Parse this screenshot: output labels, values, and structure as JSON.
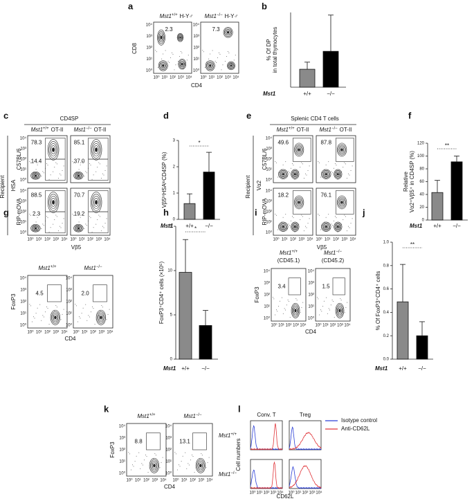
{
  "panel_letters": [
    "a",
    "b",
    "c",
    "d",
    "e",
    "f",
    "g",
    "h",
    "i",
    "j",
    "k",
    "l"
  ],
  "flow_ticks": [
    "10⁰",
    "10¹",
    "10²",
    "10³",
    "10⁴"
  ],
  "a": {
    "plots": [
      {
        "genotype": "Mst1",
        "superscript": "+/+",
        "suffix": "H-Y♂",
        "value": "2.3"
      },
      {
        "genotype": "Mst1",
        "superscript": "−/−",
        "suffix": "H-Y♂",
        "value": "7.3"
      }
    ],
    "y_label": "CD8",
    "x_label": "CD4"
  },
  "c": {
    "header": "CD4SP",
    "row_group": "Recipient",
    "rows": [
      "C57BL/6",
      "RIP-mOVA"
    ],
    "columns": [
      {
        "genotype": "Mst1",
        "superscript": "+/+",
        "suffix": "OT-II"
      },
      {
        "genotype": "Mst1",
        "superscript": "−/−",
        "suffix": "OT-II"
      }
    ],
    "values": [
      [
        [
          "78.3",
          "14.4"
        ],
        [
          "85.1",
          "37.0"
        ]
      ],
      [
        [
          "88.5",
          "2.3"
        ],
        [
          "70.7",
          "19.2"
        ]
      ]
    ],
    "y_label": "HSA",
    "x_label": "Vβ5"
  },
  "e": {
    "header": "Splenic CD4 T cells",
    "row_group": "Recipient",
    "rows": [
      "C57BL/6",
      "RIP-mOVA"
    ],
    "columns": [
      {
        "genotype": "Mst1",
        "superscript": "+/+",
        "suffix": "OT-II"
      },
      {
        "genotype": "Mst1",
        "superscript": "−/−",
        "suffix": "OT-II"
      }
    ],
    "values": [
      [
        "49.6",
        "87.8"
      ],
      [
        "18.2",
        "76.1"
      ]
    ],
    "y_label": "Vα2",
    "x_label": "Vβ5"
  },
  "g": {
    "plots": [
      {
        "genotype": "Mst1",
        "superscript": "+/+",
        "value": "4.5"
      },
      {
        "genotype": "Mst1",
        "superscript": "−/−",
        "value": "2.0"
      }
    ],
    "y_label": "FoxP3",
    "x_label": "CD4"
  },
  "i": {
    "plots": [
      {
        "genotype": "Mst1",
        "superscript": "+/+",
        "subtitle": "(CD45.1)",
        "value": "3.4"
      },
      {
        "genotype": "Mst1",
        "superscript": "−/−",
        "subtitle": "(CD45.2)",
        "value": "1.5"
      }
    ],
    "y_label": "FoxP3",
    "x_label": "CD4"
  },
  "k": {
    "plots": [
      {
        "genotype": "Mst1",
        "superscript": "+/+",
        "value": "8.8"
      },
      {
        "genotype": "Mst1",
        "superscript": "−/−",
        "value": "13.1"
      }
    ],
    "y_label": "FoxP3",
    "x_label": "CD4"
  },
  "l": {
    "columns": [
      "Conv. T",
      "Treg"
    ],
    "rows": [
      {
        "genotype": "Mst1",
        "superscript": "+/+"
      },
      {
        "genotype": "Mst1",
        "superscript": "−/−"
      }
    ],
    "y_label": "Cell numbers",
    "x_label": "CD62L",
    "legend": [
      {
        "name": "Isotype control",
        "color": "#2b3fd6"
      },
      {
        "name": "Anti-CD62L",
        "color": "#e0353a"
      }
    ]
  },
  "chart_data": [
    {
      "type": "bar",
      "y_label": [
        "% Of DP",
        "in total thymocytes"
      ],
      "category_title": "Mst1",
      "categories": [
        "+/+",
        "−/−"
      ],
      "values": [
        4.8,
        9.6
      ],
      "errors": [
        1.9,
        9.7
      ],
      "colors": [
        "#8a8a8a",
        "#000000"
      ],
      "ylim": [
        0,
        20
      ]
    },
    {
      "type": "bar",
      "y_label": [
        "Vβ5ʰⁱHSAˡᵒCD4SP (%)"
      ],
      "category_title": "Mst1",
      "categories": [
        "+/+",
        "−/−"
      ],
      "values": [
        0.6,
        1.8
      ],
      "errors": [
        0.37,
        0.75
      ],
      "colors": [
        "#8a8a8a",
        "#000000"
      ],
      "ylim": [
        0,
        3
      ],
      "yticks": [
        0,
        1,
        2,
        3
      ],
      "significance": "*"
    },
    {
      "type": "bar",
      "y_label": [
        "Relative",
        "Vα2⁺Vβ5⁺ in CD4SP (%)"
      ],
      "category_title": "Mst1",
      "categories": [
        "+/+",
        "−/−"
      ],
      "values": [
        43,
        91
      ],
      "errors": [
        19,
        9
      ],
      "colors": [
        "#8a8a8a",
        "#000000"
      ],
      "ylim": [
        0,
        120
      ],
      "yticks": [
        0,
        20,
        40,
        60,
        80,
        100,
        120
      ],
      "significance": "**"
    },
    {
      "type": "bar",
      "y_label": [
        "FoxP3⁺CD4⁺ cells (×10⁵)"
      ],
      "category_title": "Mst1",
      "categories": [
        "+/+",
        "−/−"
      ],
      "values": [
        9.8,
        3.8
      ],
      "errors": [
        3.7,
        1.7
      ],
      "colors": [
        "#8a8a8a",
        "#000000"
      ],
      "ylim": [
        0,
        15
      ],
      "yticks": [
        0,
        5,
        10,
        15
      ],
      "significance": "*"
    },
    {
      "type": "bar",
      "y_label": [
        "% Of FoxP3⁺CD4⁺ cells"
      ],
      "category_title": "Mst1",
      "categories": [
        "+/+",
        "−/−"
      ],
      "values": [
        0.49,
        0.2
      ],
      "errors": [
        0.32,
        0.12
      ],
      "colors": [
        "#8a8a8a",
        "#000000"
      ],
      "ylim": [
        0,
        1
      ],
      "yticks": [
        {
          "value": 0,
          "label": "0.0"
        },
        0.2,
        0.4,
        0.6,
        0.8,
        {
          "value": 1,
          "label": "1.0"
        }
      ],
      "significance": "**"
    }
  ]
}
